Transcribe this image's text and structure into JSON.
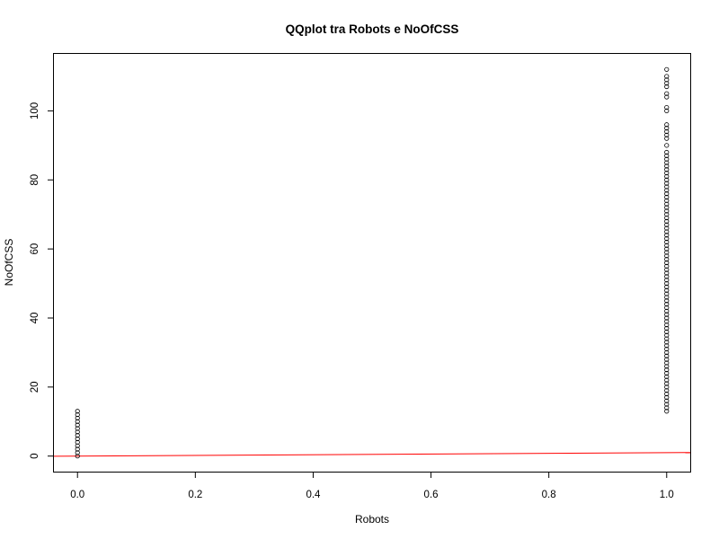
{
  "chart_data": {
    "type": "scatter",
    "title": "QQplot tra Robots e NoOfCSS",
    "xlabel": "Robots",
    "ylabel": "NoOfCSS",
    "xlim": [
      -0.04,
      1.04
    ],
    "ylim": [
      -4.5,
      116.5
    ],
    "x_ticks": [
      0.0,
      0.2,
      0.4,
      0.6,
      0.8,
      1.0
    ],
    "x_tick_labels": [
      "0.0",
      "0.2",
      "0.4",
      "0.6",
      "0.8",
      "1.0"
    ],
    "y_ticks": [
      0,
      20,
      40,
      60,
      80,
      100
    ],
    "y_tick_labels": [
      "0",
      "20",
      "40",
      "60",
      "80",
      "100"
    ],
    "grid": false,
    "legend": "none",
    "point_style": "open-circle",
    "series": [
      {
        "x": 0.0,
        "y": [
          0,
          1,
          2,
          3,
          4,
          5,
          6,
          7,
          8,
          9,
          10,
          11,
          12,
          13
        ]
      },
      {
        "x": 1.0,
        "y": [
          13,
          14,
          15,
          16,
          17,
          18,
          19,
          20,
          21,
          22,
          23,
          24,
          25,
          26,
          27,
          28,
          29,
          30,
          31,
          32,
          33,
          34,
          35,
          36,
          37,
          38,
          39,
          40,
          41,
          42,
          43,
          44,
          45,
          46,
          47,
          48,
          49,
          50,
          51,
          52,
          53,
          54,
          55,
          56,
          57,
          58,
          59,
          60,
          61,
          62,
          63,
          64,
          65,
          66,
          67,
          68,
          69,
          70,
          71,
          72,
          73,
          74,
          75,
          76,
          77,
          78,
          79,
          80,
          81,
          82,
          83,
          84,
          85,
          86,
          87,
          88,
          90,
          92,
          93,
          94,
          95,
          96,
          100,
          101,
          104,
          105,
          107,
          108,
          109,
          110,
          112
        ]
      }
    ],
    "reference_line": {
      "color": "#ff0000",
      "points": [
        [
          -0.04,
          -0.04
        ],
        [
          1.04,
          1.04
        ]
      ]
    }
  }
}
